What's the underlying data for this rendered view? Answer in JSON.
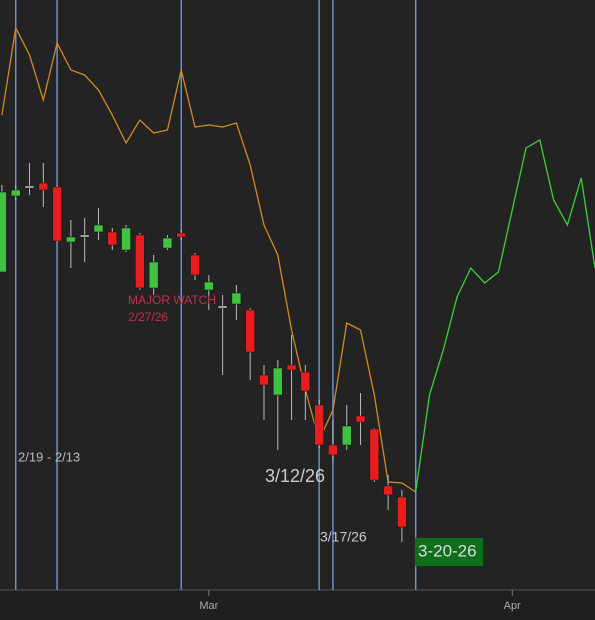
{
  "chart_data": {
    "type": "candlestick",
    "x": [
      0,
      1,
      2,
      3,
      4,
      5,
      6,
      7,
      8,
      9,
      10,
      11,
      12,
      13,
      14,
      15,
      16,
      17,
      18,
      19,
      20,
      21,
      22,
      23,
      24,
      25,
      26,
      27,
      28,
      29
    ],
    "open": [
      318,
      394,
      404,
      407,
      403,
      348,
      355,
      358,
      358,
      340,
      355,
      302,
      342,
      357,
      335,
      300,
      284,
      286,
      280,
      215,
      195,
      225,
      218,
      185,
      145,
      145,
      174,
      161,
      104,
      93
    ],
    "high": [
      405,
      405,
      427,
      427,
      405,
      370,
      372,
      382,
      362,
      365,
      357,
      335,
      355,
      360,
      337,
      315,
      295,
      305,
      282,
      225,
      230,
      255,
      225,
      190,
      170,
      185,
      197,
      162,
      115,
      100
    ],
    "low": [
      318,
      390,
      395,
      383,
      347,
      322,
      328,
      350,
      340,
      338,
      300,
      295,
      340,
      350,
      310,
      280,
      215,
      270,
      210,
      170,
      140,
      170,
      170,
      142,
      130,
      140,
      145,
      108,
      80,
      48
    ],
    "close": [
      398,
      400,
      404,
      400,
      349,
      353,
      355,
      365,
      345,
      362,
      302,
      328,
      352,
      353,
      315,
      308,
      284,
      297,
      238,
      205,
      222,
      220,
      199,
      145,
      135,
      164,
      168,
      110,
      95,
      63
    ],
    "up_color": "#3ec43e",
    "down_color": "#e81e1e",
    "flat_color": "#d0d0d0",
    "lines": [
      {
        "color": "#d08a22",
        "x": [
          0,
          1,
          2,
          3,
          4,
          5,
          6,
          7,
          8,
          9,
          10,
          11,
          12,
          13,
          14,
          15,
          16,
          17,
          18,
          19,
          20,
          21,
          22,
          23,
          24,
          25,
          26,
          27,
          28,
          29,
          30
        ],
        "values": [
          475,
          562,
          535,
          490,
          547,
          520,
          515,
          500,
          475,
          447,
          470,
          457,
          460,
          520,
          463,
          465,
          463,
          467,
          425,
          365,
          335,
          260,
          200,
          150,
          180,
          267,
          260,
          195,
          108,
          107,
          98
        ]
      },
      {
        "color": "#3ecf3e",
        "x": [
          30,
          31,
          32,
          33,
          34,
          35,
          36,
          37,
          38,
          39,
          40,
          41,
          42,
          43
        ],
        "values": [
          98,
          195,
          240,
          293,
          322,
          307,
          318,
          380,
          442,
          450,
          390,
          365,
          412,
          322
        ]
      }
    ],
    "vlines": [
      1,
      4,
      13,
      23,
      24,
      30
    ],
    "vline_color": "#6a8fd8",
    "xlim": [
      -0.14,
      43
    ],
    "ylim": [
      0,
      590
    ],
    "xticks": [
      {
        "value": 15,
        "label": "Mar"
      },
      {
        "value": 37,
        "label": "Apr"
      }
    ],
    "annotations": [
      "MAJOR WATCH",
      "2/27/26",
      "2/19 - 2/13",
      "3/12/26",
      "3/17/26",
      "3-20-26"
    ]
  }
}
